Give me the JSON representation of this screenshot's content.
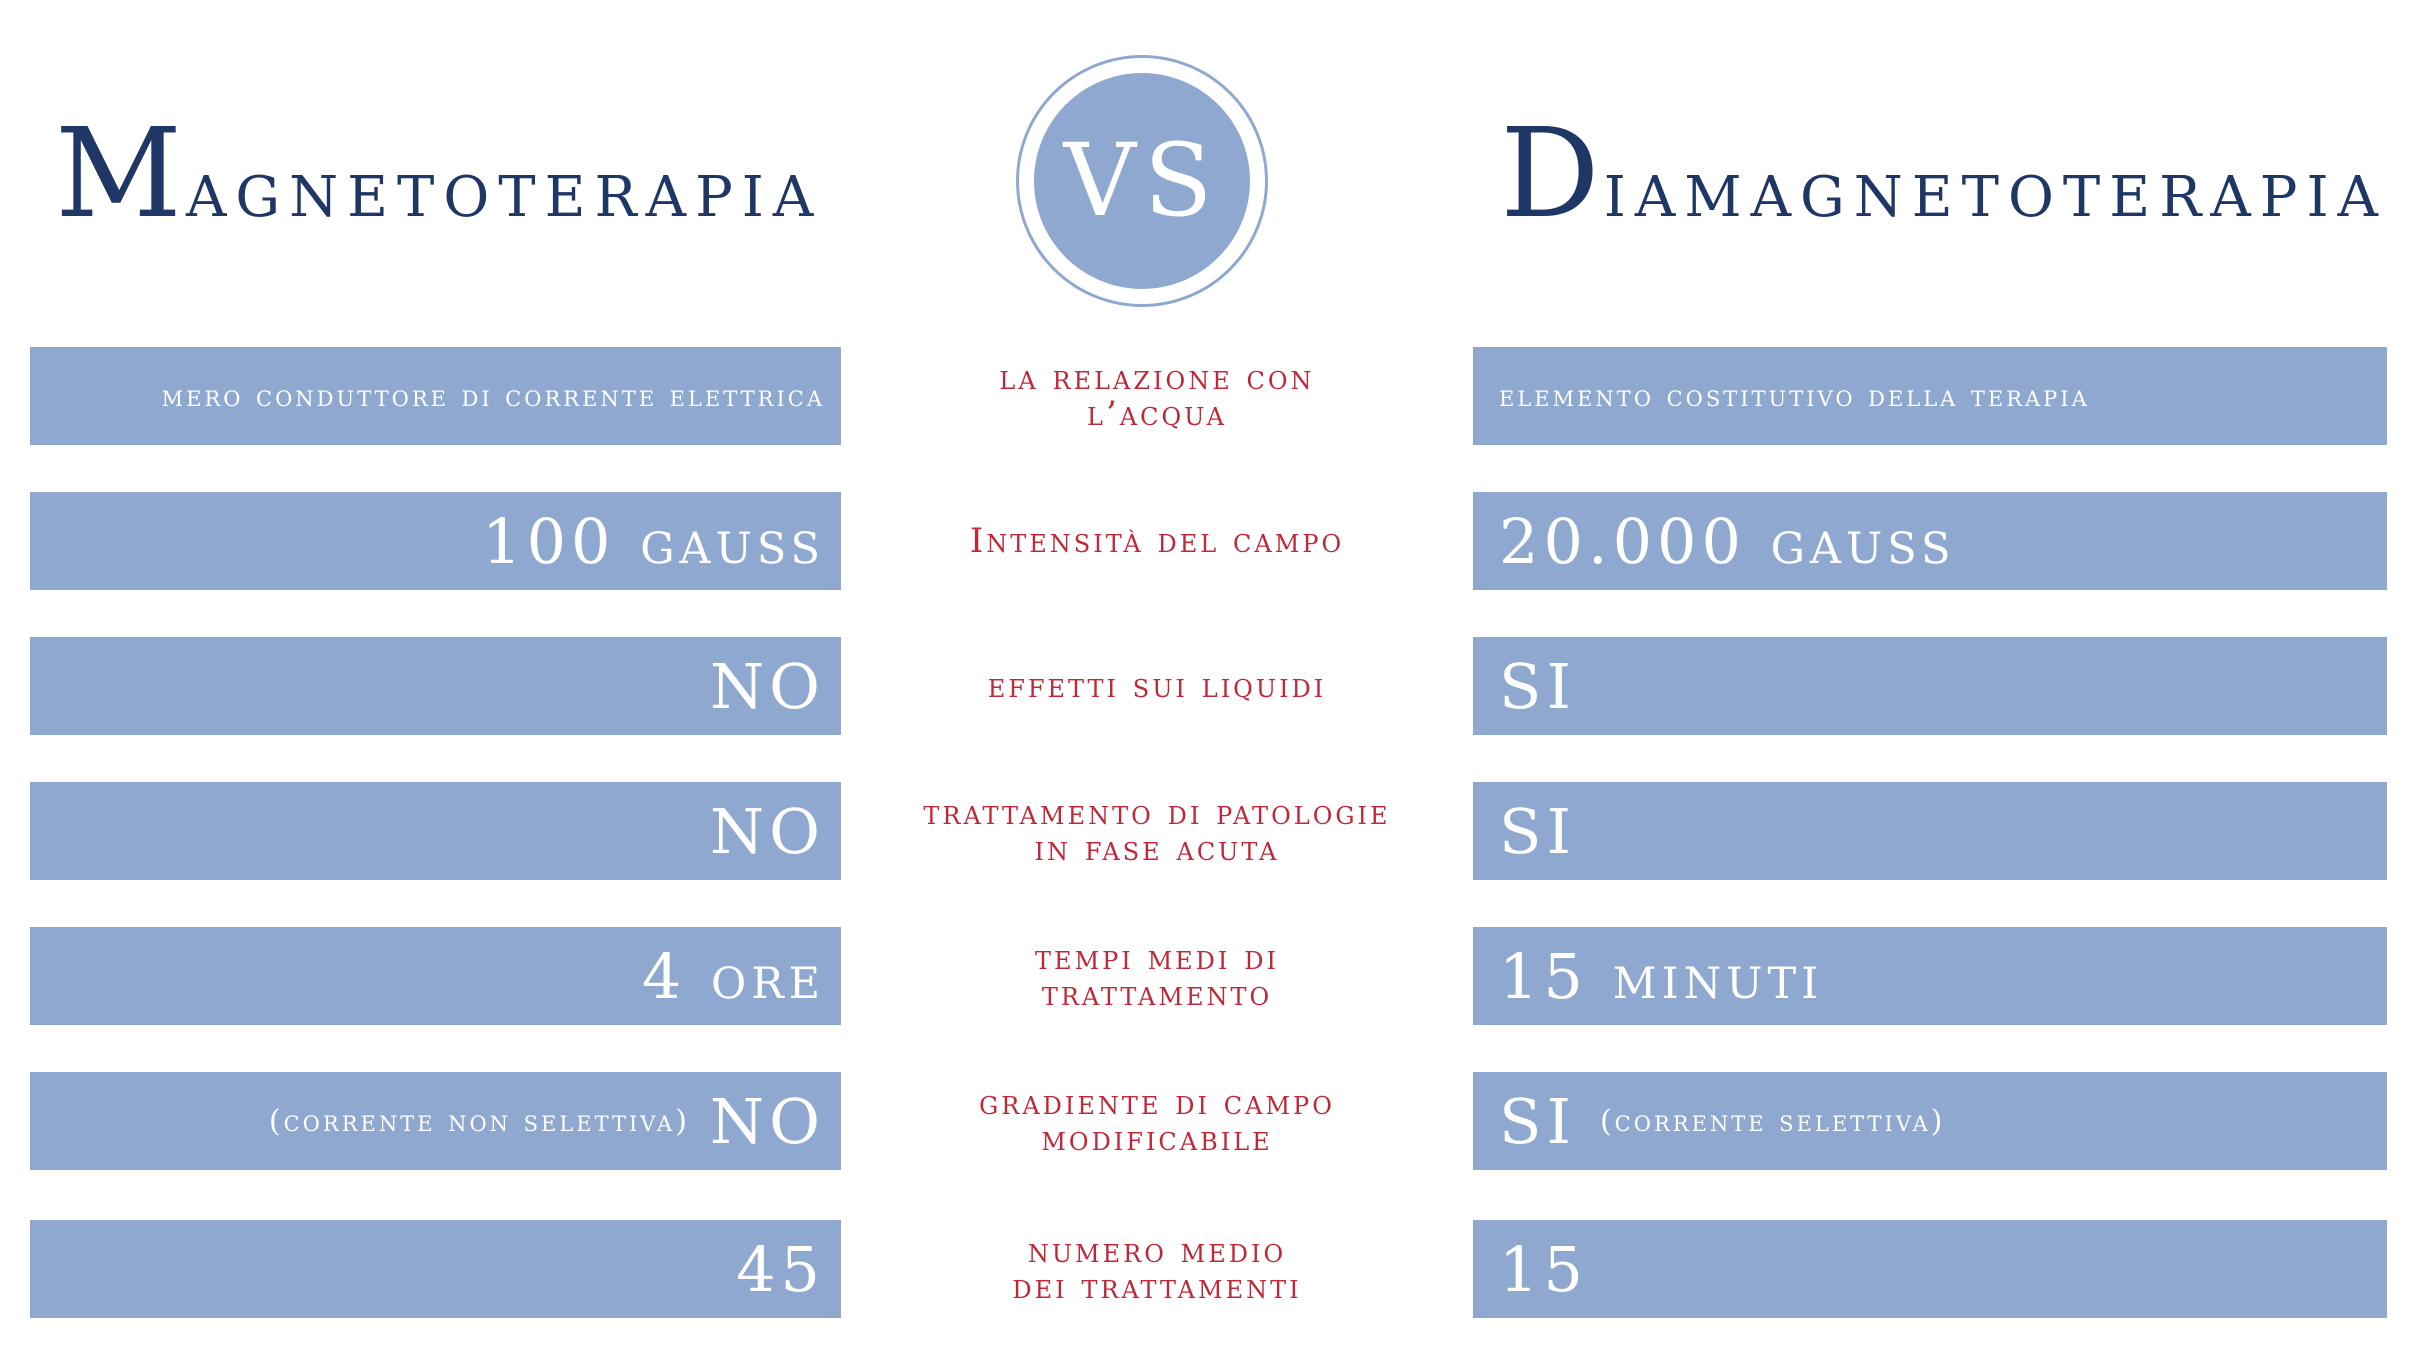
{
  "titles": {
    "left": {
      "cap": "M",
      "rest": "agnetoterapia"
    },
    "right": {
      "cap": "D",
      "rest": "iamagnetoterapia"
    },
    "vs": "VS"
  },
  "rows": [
    {
      "left": "mero conduttore di corrente elettrica",
      "middle": [
        "la relazione con",
        "l’acqua"
      ],
      "right": "elemento costitutivo della terapia"
    },
    {
      "left": "100 gauss",
      "middle": [
        "Intensità del campo"
      ],
      "right": "20.000 gauss"
    },
    {
      "left": "NO",
      "middle": [
        "effetti sui liquidi"
      ],
      "right": "SI"
    },
    {
      "left": "NO",
      "middle": [
        "trattamento di patologie",
        "in fase acuta"
      ],
      "right": "SI"
    },
    {
      "left": "4 ore",
      "middle": [
        "tempi medi di",
        "trattamento"
      ],
      "right": "15 minuti"
    },
    {
      "left": "NO",
      "left_note": "(corrente non selettiva)",
      "middle": [
        "gradiente di campo",
        "modificabile"
      ],
      "right": "SI",
      "right_note": "(corrente selettiva)"
    },
    {
      "left": "45",
      "middle": [
        "numero medio",
        "dei trattamenti"
      ],
      "right": "15"
    }
  ]
}
